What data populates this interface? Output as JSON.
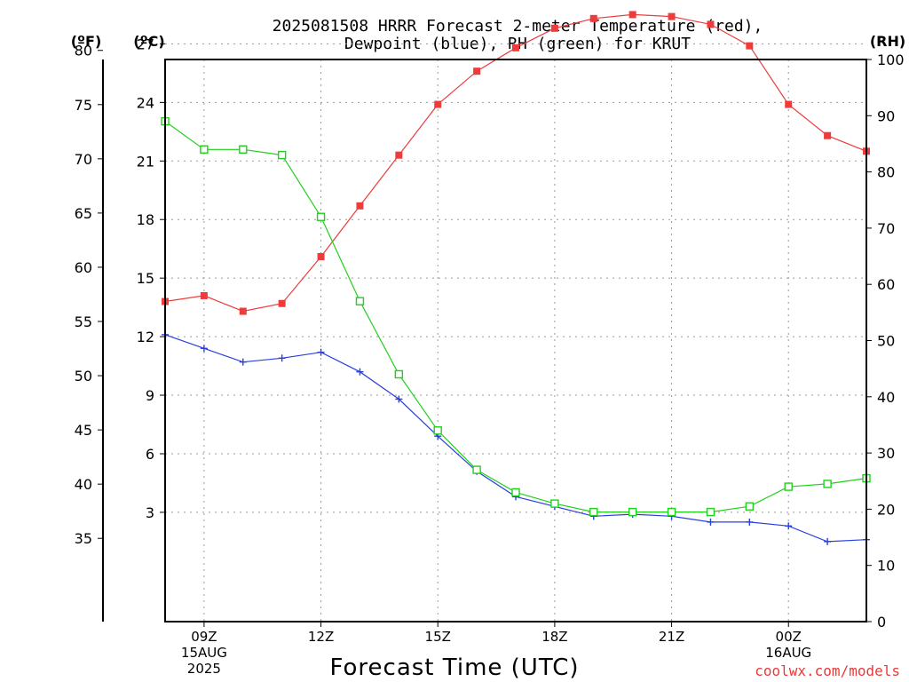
{
  "title": {
    "line1": "2025081508 HRRR Forecast 2-meter Temperature (red),",
    "line2": "Dewpoint (blue), RH (green) for KRUT"
  },
  "units": {
    "fahrenheit": "(ºF)",
    "celsius": "(ºC)",
    "rh": "(RH)"
  },
  "credit": {
    "text": "coolwx.com/models",
    "color": "#e83a3a"
  },
  "chart_data": {
    "type": "line",
    "xlabel": "Forecast Time (UTC)",
    "x_hours": [
      8,
      9,
      10,
      11,
      12,
      13,
      14,
      15,
      16,
      17,
      18,
      19,
      20,
      21,
      22,
      23,
      24,
      25,
      26
    ],
    "x_ticks": [
      {
        "hour": 9,
        "lines": [
          "09Z",
          "15AUG",
          "2025"
        ]
      },
      {
        "hour": 12,
        "lines": [
          "12Z"
        ]
      },
      {
        "hour": 15,
        "lines": [
          "15Z"
        ]
      },
      {
        "hour": 18,
        "lines": [
          "18Z"
        ]
      },
      {
        "hour": 21,
        "lines": [
          "21Z"
        ]
      },
      {
        "hour": 24,
        "lines": [
          "00Z",
          "16AUG"
        ]
      }
    ],
    "xlim": [
      8,
      26
    ],
    "y_celsius": {
      "ylim": [
        -2.6,
        26.2
      ],
      "ticks": [
        "3",
        "6",
        "9",
        "12",
        "15",
        "18",
        "21",
        "24",
        "27"
      ]
    },
    "y_fahrenheit": {
      "ticks": [
        "35",
        "40",
        "45",
        "50",
        "55",
        "60",
        "65",
        "70",
        "75",
        "80"
      ]
    },
    "y_rh": {
      "ylim": [
        0,
        100
      ],
      "ticks": [
        "0",
        "10",
        "20",
        "30",
        "40",
        "50",
        "60",
        "70",
        "80",
        "90",
        "100"
      ]
    },
    "series": [
      {
        "name": "Temperature",
        "axis": "celsius",
        "color": "#ee3b3b",
        "marker": "filled-square",
        "values": [
          13.8,
          14.1,
          13.3,
          13.7,
          16.1,
          18.7,
          21.3,
          23.9,
          25.6,
          26.8,
          27.8,
          28.3,
          28.5,
          28.4,
          28.0,
          26.9,
          23.9,
          22.3,
          21.5
        ]
      },
      {
        "name": "Dewpoint",
        "axis": "celsius",
        "color": "#2a3fe0",
        "marker": "plus",
        "values": [
          12.1,
          11.4,
          10.7,
          10.9,
          11.2,
          10.2,
          8.8,
          6.9,
          5.1,
          3.8,
          3.3,
          2.8,
          2.9,
          2.8,
          2.5,
          2.5,
          2.3,
          1.5,
          1.6
        ]
      },
      {
        "name": "RH",
        "axis": "rh",
        "color": "#22d01e",
        "marker": "open-square",
        "values": [
          89,
          84,
          84,
          83,
          72,
          57,
          44,
          34,
          27,
          23,
          21,
          19.5,
          19.5,
          19.5,
          19.5,
          20.5,
          24,
          24.5,
          25.5
        ]
      }
    ]
  }
}
